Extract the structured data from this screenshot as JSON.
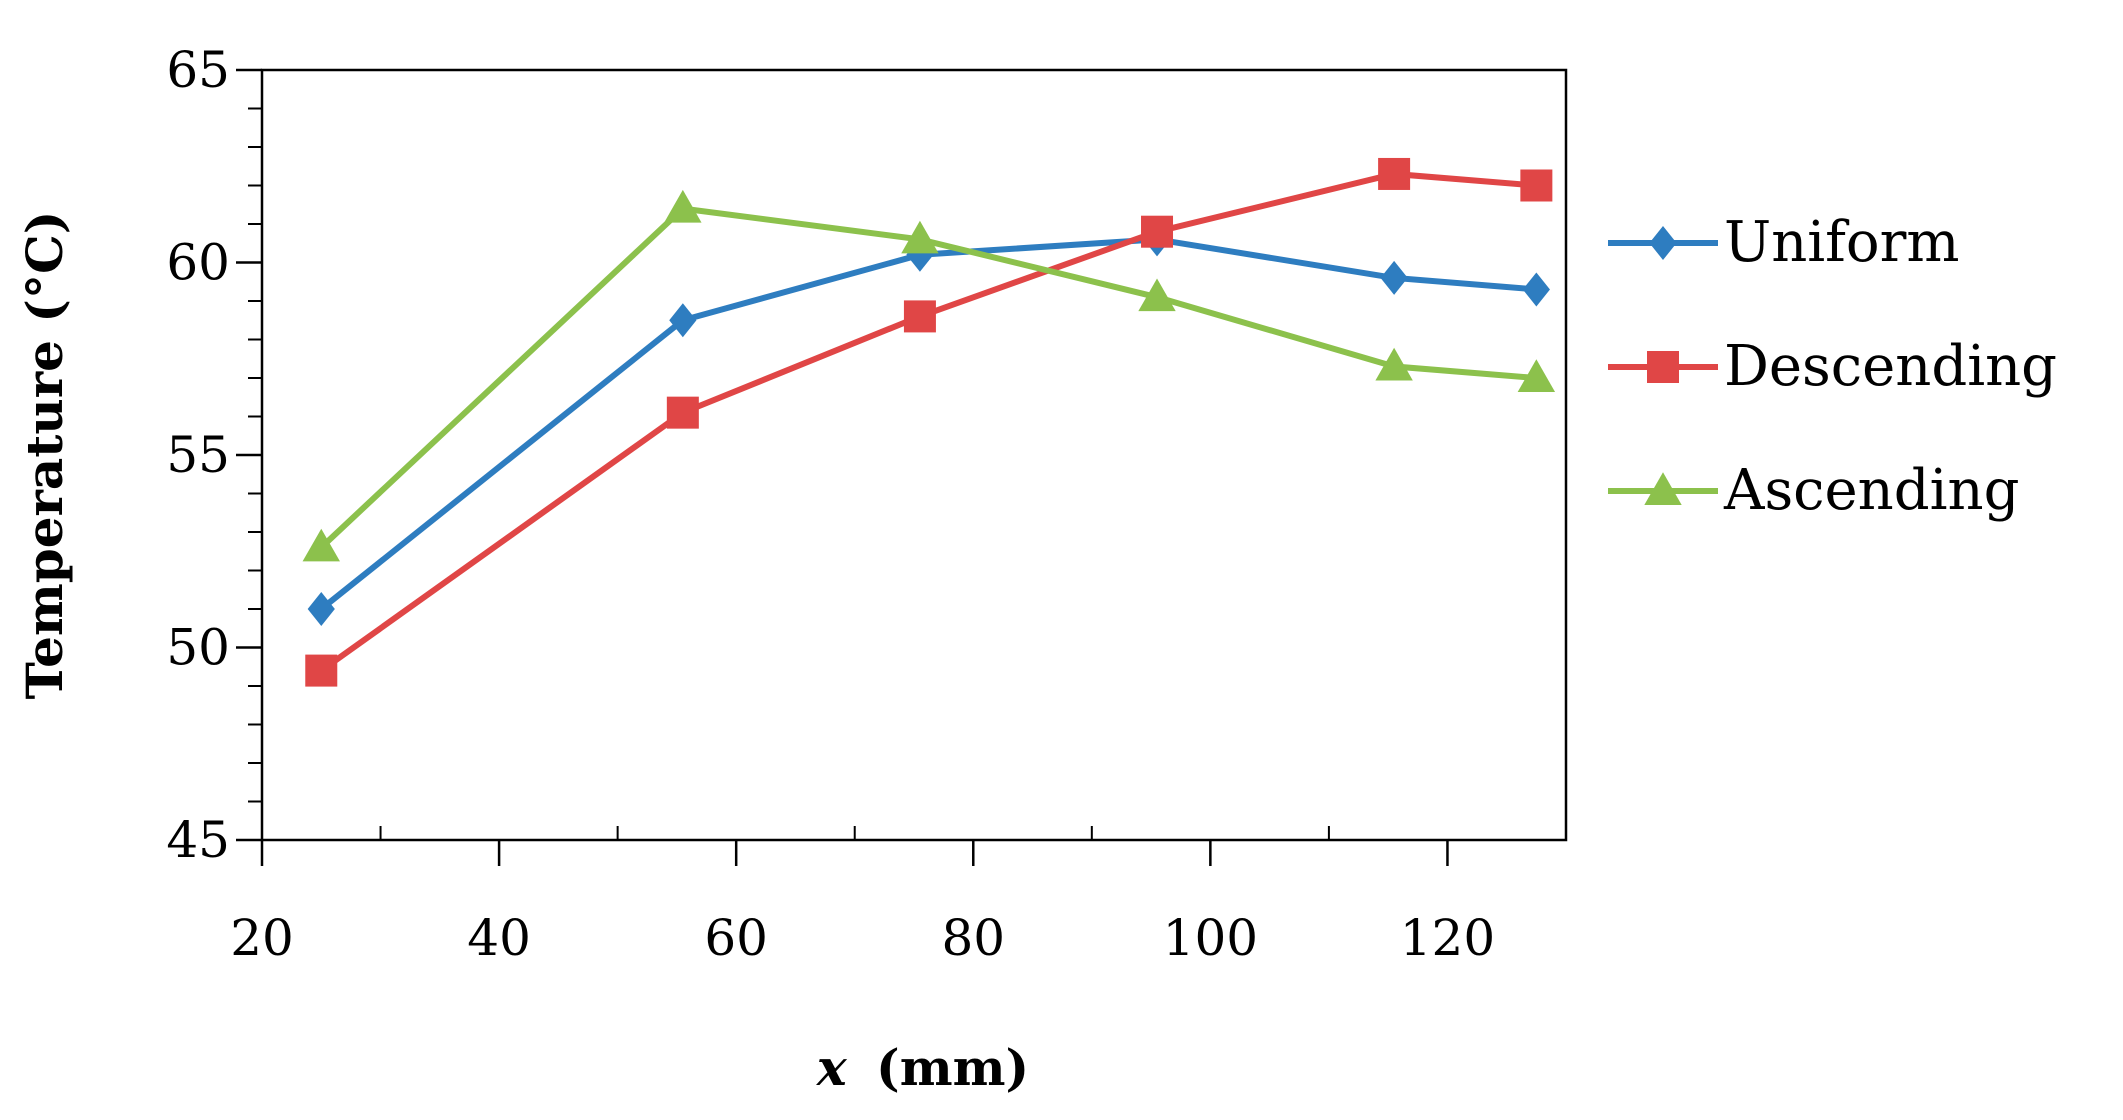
{
  "chart_data": {
    "type": "line",
    "title": "",
    "xlabel_var": "x",
    "xlabel_unit": "(mm)",
    "ylabel": "Temperature (°C)",
    "xlim": [
      20,
      130
    ],
    "ylim": [
      45,
      65
    ],
    "xticks": [
      20,
      40,
      60,
      80,
      100,
      120
    ],
    "yticks": [
      45,
      50,
      55,
      60,
      65
    ],
    "x_minor_step": 10,
    "y_minor_step": 1,
    "grid": false,
    "legend_position": "right",
    "series": [
      {
        "name": "Uniform",
        "color": "#2e7dc0",
        "marker": "diamond",
        "x": [
          25,
          55.5,
          75.5,
          95.5,
          115.5,
          127.5
        ],
        "y": [
          51.0,
          58.5,
          60.2,
          60.6,
          59.6,
          59.3
        ]
      },
      {
        "name": "Descending",
        "color": "#e04646",
        "marker": "square",
        "x": [
          25,
          55.5,
          75.5,
          95.5,
          115.5,
          127.5
        ],
        "y": [
          49.4,
          56.1,
          58.6,
          60.8,
          62.3,
          62.0
        ]
      },
      {
        "name": "Ascending",
        "color": "#8cc14c",
        "marker": "triangle",
        "x": [
          25,
          55.5,
          75.5,
          95.5,
          115.5,
          127.5
        ],
        "y": [
          52.6,
          61.4,
          60.6,
          59.1,
          57.3,
          57.0
        ]
      }
    ]
  }
}
